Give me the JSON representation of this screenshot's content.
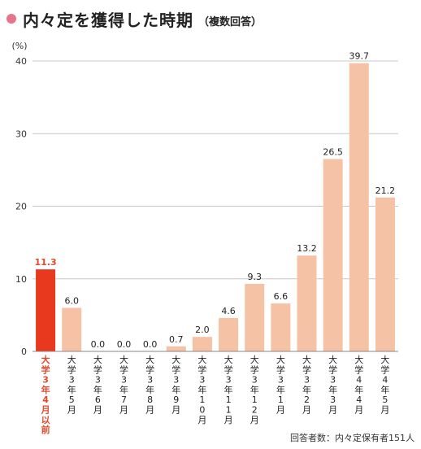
{
  "header": {
    "title": "内々定を獲得した時期",
    "subtitle": "（複数回答）"
  },
  "chart_data": {
    "type": "bar",
    "ylabel": "(%)",
    "xlabel": "",
    "ylim": [
      0,
      40
    ],
    "yticks": [
      0,
      10,
      20,
      30,
      40
    ],
    "grid": true,
    "categories": [
      "大学3年4月以前",
      "大学3年5月",
      "大学3年6月",
      "大学3年7月",
      "大学3年8月",
      "大学3年9月",
      "大学3年10月",
      "大学3年11月",
      "大学3年12月",
      "大学3年1月",
      "大学3年2月",
      "大学3年3月",
      "大学4年4月",
      "大学4年5月"
    ],
    "values": [
      11.3,
      6.0,
      0.0,
      0.0,
      0.0,
      0.7,
      2.0,
      4.6,
      9.3,
      6.6,
      13.2,
      26.5,
      39.7,
      21.2
    ],
    "value_labels": [
      "11.3",
      "6.0",
      "0.0",
      "0.0",
      "0.0",
      "0.7",
      "2.0",
      "4.6",
      "9.3",
      "6.6",
      "13.2",
      "26.5",
      "39.7",
      "21.2"
    ],
    "highlight_index": 0,
    "colors": {
      "highlight": "#e8391f",
      "bar": "#f6c2a6",
      "grid": "#c8c8c8",
      "axis": "#888888",
      "highlight_text": "#e04a2a"
    }
  },
  "footer": {
    "source": "回答者数：内々定保有者151人"
  }
}
